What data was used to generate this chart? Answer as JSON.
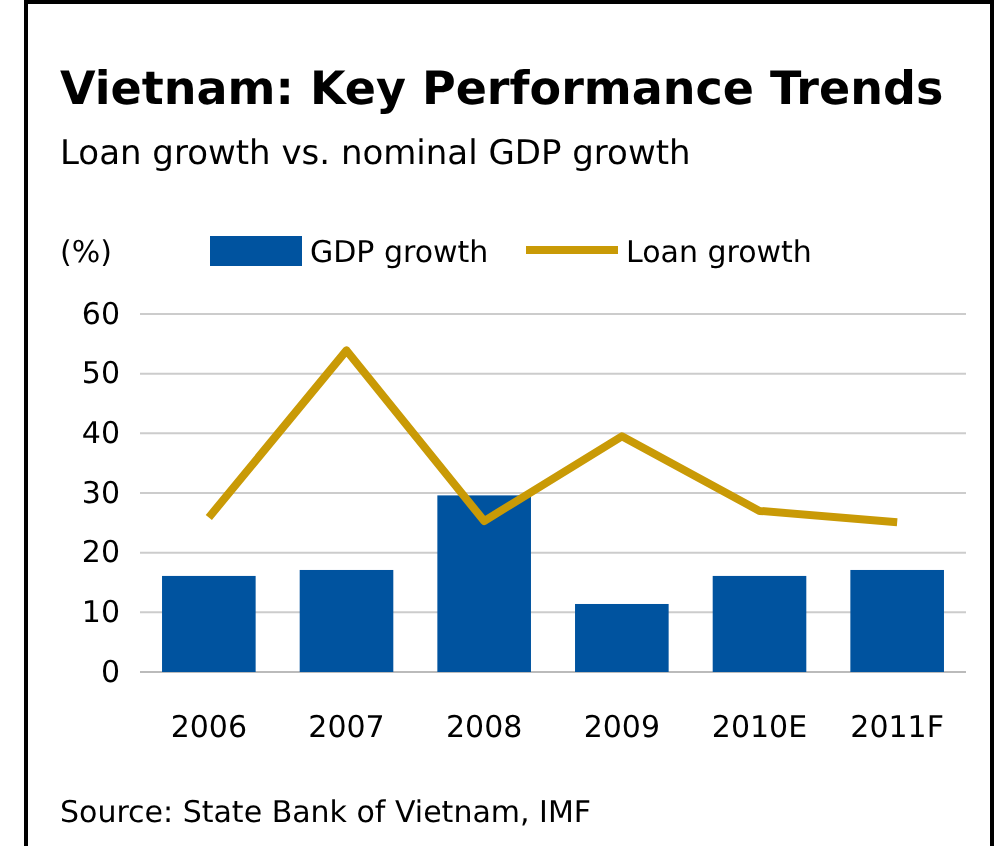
{
  "chart_data": {
    "type": "bar",
    "title": "Vietnam: Key Performance Trends",
    "subtitle": "Loan growth vs. nominal GDP growth",
    "ylabel": "(%)",
    "categories": [
      "2006",
      "2007",
      "2008",
      "2009",
      "2010E",
      "2011F"
    ],
    "series": [
      {
        "name": "GDP growth",
        "color": "#00539f",
        "values": [
          16.1,
          17.1,
          29.6,
          11.4,
          16.1,
          17.1
        ]
      },
      {
        "name": "Loan growth",
        "type": "line",
        "color": "#c99a06",
        "values": [
          25.9,
          53.9,
          25.3,
          39.5,
          27.0,
          25.1
        ]
      }
    ],
    "ylim": [
      0,
      60
    ],
    "yticks": [
      0,
      10,
      20,
      30,
      40,
      50,
      60
    ],
    "grid": "y",
    "legend": "top",
    "marker": "none",
    "line_style": "solid",
    "annotations": [
      "Source: State Bank of Vietnam, IMF"
    ]
  }
}
